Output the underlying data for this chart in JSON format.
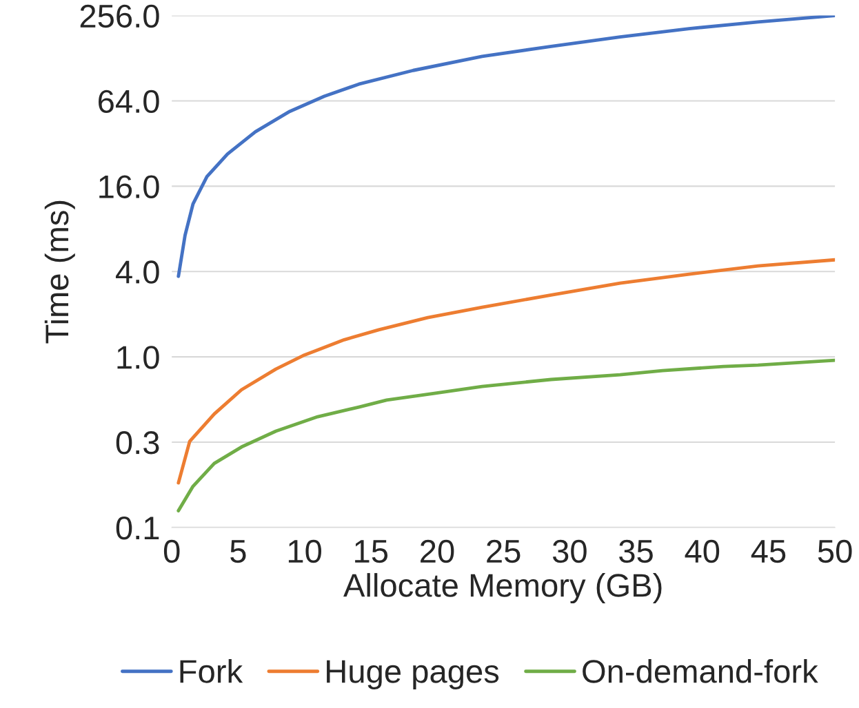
{
  "chart_data": {
    "type": "line",
    "xlabel": "Allocate Memory (GB)",
    "ylabel": "Time (ms)",
    "log": "y",
    "grid": "y",
    "legend": "bottom",
    "marker": "none",
    "line_style": "solid",
    "xlim": [
      0,
      50
    ],
    "xticks": [
      0,
      5,
      10,
      15,
      20,
      25,
      30,
      35,
      40,
      45,
      50
    ],
    "ylim": [
      0.0625,
      256
    ],
    "yticks": [
      {
        "value": 0.0625,
        "label": "0.1"
      },
      {
        "value": 0.25,
        "label": "0.3"
      },
      {
        "value": 1,
        "label": "1.0"
      },
      {
        "value": 4,
        "label": "4.0"
      },
      {
        "value": 16,
        "label": "16.0"
      },
      {
        "value": 64,
        "label": "64.0"
      },
      {
        "value": 256,
        "label": "256.0"
      }
    ],
    "series": [
      {
        "name": "Fork",
        "color": "#4472c4",
        "x": [
          0.5,
          1.0,
          1.6,
          2.65,
          4.2,
          6.3,
          8.9,
          11.5,
          14.1,
          18.2,
          23.4,
          28.6,
          33.8,
          39.0,
          44.2,
          50
        ],
        "values": [
          3.7,
          7.2,
          12.0,
          18.7,
          27,
          38.7,
          54,
          69,
          84,
          105,
          132,
          155,
          181,
          207,
          231,
          256
        ]
      },
      {
        "name": "Huge pages",
        "color": "#ed7d31",
        "x": [
          0.5,
          1.35,
          3.2,
          5.25,
          7.85,
          9.9,
          13.0,
          15.6,
          19.3,
          23.4,
          28.6,
          33.8,
          39.0,
          44.2,
          50
        ],
        "values": [
          0.129,
          0.253,
          0.395,
          0.585,
          0.82,
          1.02,
          1.32,
          1.55,
          1.89,
          2.24,
          2.73,
          3.31,
          3.83,
          4.38,
          4.84
        ]
      },
      {
        "name": "On-demand-fork",
        "color": "#70ad47",
        "x": [
          0.5,
          1.6,
          3.2,
          5.25,
          7.85,
          11.0,
          14.1,
          16.2,
          19.8,
          23.4,
          28.6,
          33.8,
          37.0,
          41.6,
          44.2,
          50
        ],
        "values": [
          0.082,
          0.122,
          0.177,
          0.231,
          0.299,
          0.378,
          0.442,
          0.495,
          0.553,
          0.618,
          0.692,
          0.748,
          0.8,
          0.855,
          0.874,
          0.945
        ]
      }
    ]
  }
}
